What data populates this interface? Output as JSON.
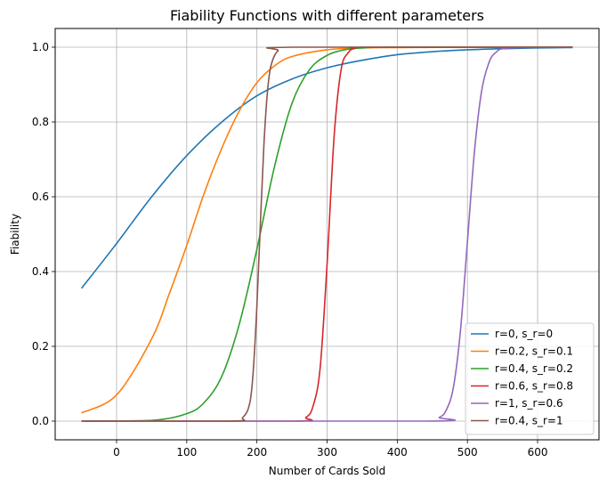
{
  "chart_data": {
    "type": "line",
    "title": "Fiability Functions with different parameters",
    "xlabel": "Number of Cards Sold",
    "ylabel": "Fiability",
    "xlim": [
      -87.5,
      687.5
    ],
    "ylim": [
      -0.05,
      1.05
    ],
    "xticks": [
      0,
      100,
      200,
      300,
      400,
      500,
      600
    ],
    "yticks": [
      0.0,
      0.2,
      0.4,
      0.6,
      0.8,
      1.0
    ],
    "xtick_labels": [
      "0",
      "100",
      "200",
      "300",
      "400",
      "500",
      "600"
    ],
    "ytick_labels": [
      "0.0",
      "0.2",
      "0.4",
      "0.6",
      "0.8",
      "1.0"
    ],
    "grid": true,
    "legend_position": "lower-right",
    "x_range": [
      -50,
      650
    ],
    "series": [
      {
        "name": "r=0, s_r=0",
        "color": "#1f77b4",
        "x": [
          -50,
          0,
          50,
          100,
          150,
          200,
          250,
          300,
          350,
          400,
          450,
          500,
          550,
          600,
          650
        ],
        "y": [
          0.355,
          0.475,
          0.6,
          0.71,
          0.8,
          0.87,
          0.915,
          0.945,
          0.965,
          0.98,
          0.988,
          0.993,
          0.996,
          0.998,
          0.999
        ]
      },
      {
        "name": "r=0.2, s_r=0.1",
        "color": "#ff7f0e",
        "x": [
          -50,
          0,
          50,
          75,
          100,
          125,
          150,
          175,
          200,
          225,
          250,
          300,
          350,
          400,
          500,
          650
        ],
        "y": [
          0.022,
          0.07,
          0.22,
          0.34,
          0.47,
          0.61,
          0.73,
          0.83,
          0.905,
          0.95,
          0.975,
          0.993,
          0.998,
          0.999,
          1.0,
          1.0
        ]
      },
      {
        "name": "r=0.4, s_r=0.2",
        "color": "#2ca02c",
        "x": [
          -50,
          50,
          100,
          125,
          150,
          175,
          200,
          225,
          250,
          275,
          300,
          325,
          350,
          400,
          650
        ],
        "y": [
          0.0,
          0.002,
          0.02,
          0.05,
          0.12,
          0.26,
          0.46,
          0.68,
          0.85,
          0.94,
          0.978,
          0.993,
          0.998,
          1.0,
          1.0
        ]
      },
      {
        "name": "r=0.6, s_r=0.8",
        "color": "#d62728",
        "x": [
          -50,
          250,
          270,
          280,
          290,
          300,
          310,
          320,
          330,
          340,
          360,
          650
        ],
        "y": [
          0.0,
          0.0,
          0.01,
          0.04,
          0.14,
          0.42,
          0.76,
          0.94,
          0.985,
          0.997,
          1.0,
          1.0
        ]
      },
      {
        "name": "r=1, s_r=0.6",
        "color": "#9467bd",
        "x": [
          -50,
          440,
          460,
          470,
          480,
          490,
          500,
          510,
          520,
          530,
          540,
          560,
          650
        ],
        "y": [
          0.0,
          0.0,
          0.01,
          0.03,
          0.09,
          0.24,
          0.48,
          0.72,
          0.88,
          0.955,
          0.985,
          0.998,
          1.0
        ]
      },
      {
        "name": "r=0.4, s_r=1",
        "color": "#8c564b",
        "x": [
          -50,
          160,
          180,
          190,
          195,
          200,
          205,
          210,
          215,
          220,
          230,
          250,
          650
        ],
        "y": [
          0.0,
          0.0,
          0.01,
          0.05,
          0.14,
          0.31,
          0.53,
          0.74,
          0.88,
          0.95,
          0.99,
          1.0,
          1.0
        ]
      }
    ]
  }
}
